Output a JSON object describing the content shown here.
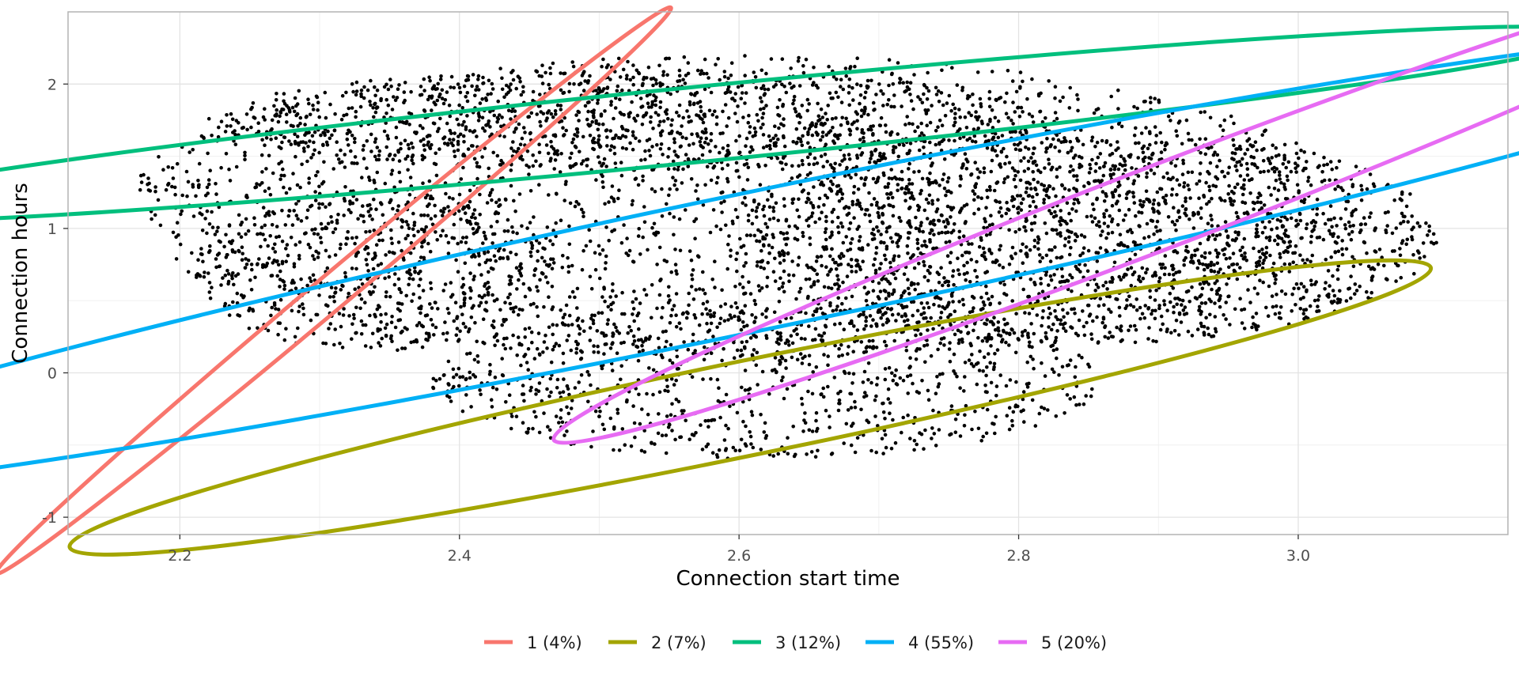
{
  "chart_data": {
    "type": "scatter",
    "title": "",
    "xlabel": "Connection start time",
    "ylabel": "Connection hours",
    "xlim": [
      2.12,
      3.15
    ],
    "ylim": [
      -1.12,
      2.5
    ],
    "x_ticks": [
      {
        "value": 2.2,
        "label": "2.2"
      },
      {
        "value": 2.4,
        "label": "2.4"
      },
      {
        "value": 2.6,
        "label": "2.6"
      },
      {
        "value": 2.8,
        "label": "2.8"
      },
      {
        "value": 3.0,
        "label": "3.0"
      }
    ],
    "y_ticks": [
      {
        "value": -1,
        "label": "-1"
      },
      {
        "value": 0,
        "label": "0"
      },
      {
        "value": 1,
        "label": "1"
      },
      {
        "value": 2,
        "label": "2"
      }
    ],
    "grid": true,
    "legend_position": "bottom",
    "point_color": "#000000",
    "point_clouds": [
      {
        "cx": 2.6,
        "cy": 1.15,
        "rx": 0.44,
        "ry": 1.05,
        "n": 2600
      },
      {
        "cx": 2.85,
        "cy": 0.95,
        "rx": 0.25,
        "ry": 0.75,
        "n": 1700
      },
      {
        "cx": 2.34,
        "cy": 0.7,
        "rx": 0.13,
        "ry": 0.55,
        "n": 500
      },
      {
        "cx": 2.62,
        "cy": -0.05,
        "rx": 0.24,
        "ry": 0.55,
        "n": 900
      },
      {
        "cx": 2.52,
        "cy": 1.75,
        "rx": 0.3,
        "ry": 0.35,
        "n": 900
      }
    ],
    "series": [
      {
        "name": "1 (4%)",
        "color": "#F8766D",
        "ellipse": {
          "cx": 2.31,
          "cy": 0.57,
          "semi_major": 0.315,
          "semi_minor": 0.47,
          "angle_deg": -40
        }
      },
      {
        "name": "2 (7%)",
        "color": "#A3A500",
        "ellipse": {
          "cx": 2.608,
          "cy": -0.24,
          "semi_major": 0.497,
          "semi_minor": 1.31,
          "angle_deg": -11.6
        }
      },
      {
        "name": "3 (12%)",
        "color": "#00BF7D",
        "ellipse": {
          "cx": 2.57,
          "cy": 1.72,
          "semi_major": 0.652,
          "semi_minor": 1.04,
          "angle_deg": -5.7
        }
      },
      {
        "name": "4 (55%)",
        "color": "#00B0F6",
        "ellipse": {
          "cx": 2.61,
          "cy": 0.77,
          "semi_major": 0.786,
          "semi_minor": 1.91,
          "angle_deg": -11.7
        }
      },
      {
        "name": "5 (20%)",
        "color": "#E76BF3",
        "ellipse": {
          "cx": 2.91,
          "cy": 1.18,
          "semi_major": 0.474,
          "semi_minor": 1.15,
          "angle_deg": -21
        }
      }
    ]
  }
}
